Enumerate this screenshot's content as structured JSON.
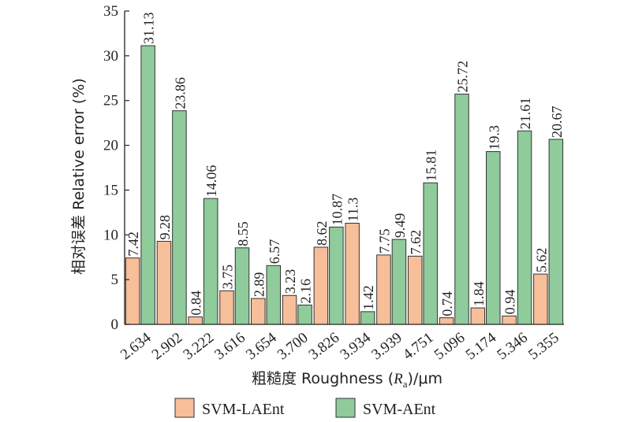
{
  "chart_data": {
    "type": "bar",
    "categories": [
      "2.634",
      "2.902",
      "3.222",
      "3.616",
      "3.654",
      "3.700",
      "3.826",
      "3.934",
      "3.939",
      "4.751",
      "5.096",
      "5.174",
      "5.346",
      "5.355"
    ],
    "series": [
      {
        "name": "SVM-LAEnt",
        "color": "#F6BE99",
        "values": [
          7.42,
          9.28,
          0.84,
          3.75,
          2.89,
          3.23,
          8.62,
          11.3,
          7.75,
          7.62,
          0.74,
          1.84,
          0.94,
          5.62
        ]
      },
      {
        "name": "SVM-AEnt",
        "color": "#8FCB9B",
        "values": [
          31.13,
          23.86,
          14.06,
          8.55,
          6.57,
          2.16,
          10.87,
          1.42,
          9.49,
          15.81,
          25.72,
          19.3,
          21.61,
          20.67
        ]
      }
    ],
    "data_labels": [
      [
        "7.42",
        "9.28",
        "0.84",
        "3.75",
        "2.89",
        "3.23",
        "8.62",
        "11.3",
        "7.75",
        "7.62",
        "0.74",
        "1.84",
        "0.94",
        "5.62"
      ],
      [
        "31.13",
        "23.86",
        "14.06",
        "8.55",
        "6.57",
        "2.16",
        "10.87",
        "1.42",
        "9.49",
        "15.81",
        "25.72",
        "19.3",
        "21.61",
        "20.67"
      ]
    ],
    "ylabel": "相对误差 Relative error (%)",
    "xlabel_prefix": "粗糙度 Roughness (",
    "xlabel_var": "R",
    "xlabel_sub": "a",
    "xlabel_suffix": ")/μm",
    "ylim": [
      0,
      35
    ],
    "yticks": [
      "0",
      "5",
      "10",
      "15",
      "20",
      "25",
      "30",
      "35"
    ],
    "legend_position": "bottom",
    "grid": false
  }
}
